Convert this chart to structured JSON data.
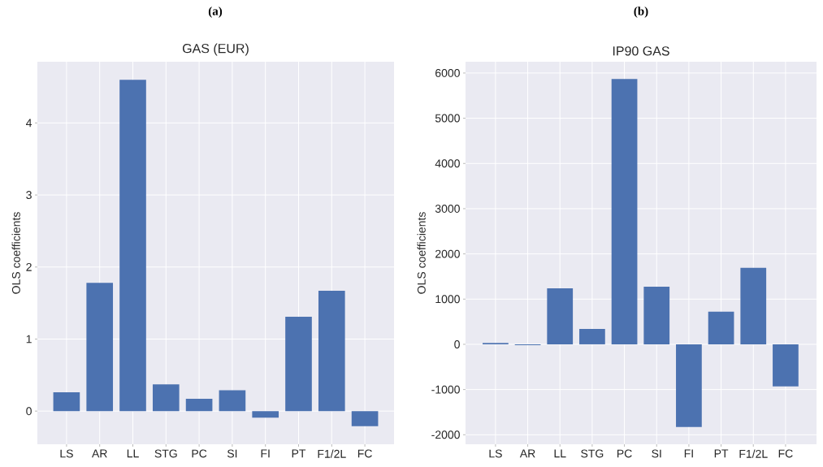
{
  "chart_data": [
    {
      "type": "bar",
      "annotations": [
        "(a)"
      ],
      "title": "GAS (EUR)",
      "ylabel": "OLS coefficients",
      "categories": [
        "LS",
        "AR",
        "LL",
        "STG",
        "PC",
        "SI",
        "FI",
        "PT",
        "F1/2L",
        "FC"
      ],
      "values": [
        0.26,
        1.78,
        4.6,
        0.37,
        0.17,
        0.29,
        -0.09,
        1.31,
        1.67,
        -0.21
      ],
      "color": "#4c72b0",
      "ylim": [
        -0.46,
        4.85
      ],
      "yticks": [
        0,
        1,
        2,
        3,
        4
      ],
      "grid": true
    },
    {
      "type": "bar",
      "annotations": [
        "(b)"
      ],
      "title": "IP90 GAS",
      "ylabel": "OLS coefficients",
      "categories": [
        "LS",
        "AR",
        "LL",
        "STG",
        "PC",
        "SI",
        "FI",
        "PT",
        "F1/2L",
        "FC"
      ],
      "values": [
        30,
        -20,
        1240,
        340,
        5870,
        1275,
        -1830,
        720,
        1690,
        -930
      ],
      "color": "#4c72b0",
      "ylim": [
        -2210,
        6250
      ],
      "yticks": [
        -2000,
        -1000,
        0,
        1000,
        2000,
        3000,
        4000,
        5000,
        6000
      ],
      "grid": true
    }
  ]
}
